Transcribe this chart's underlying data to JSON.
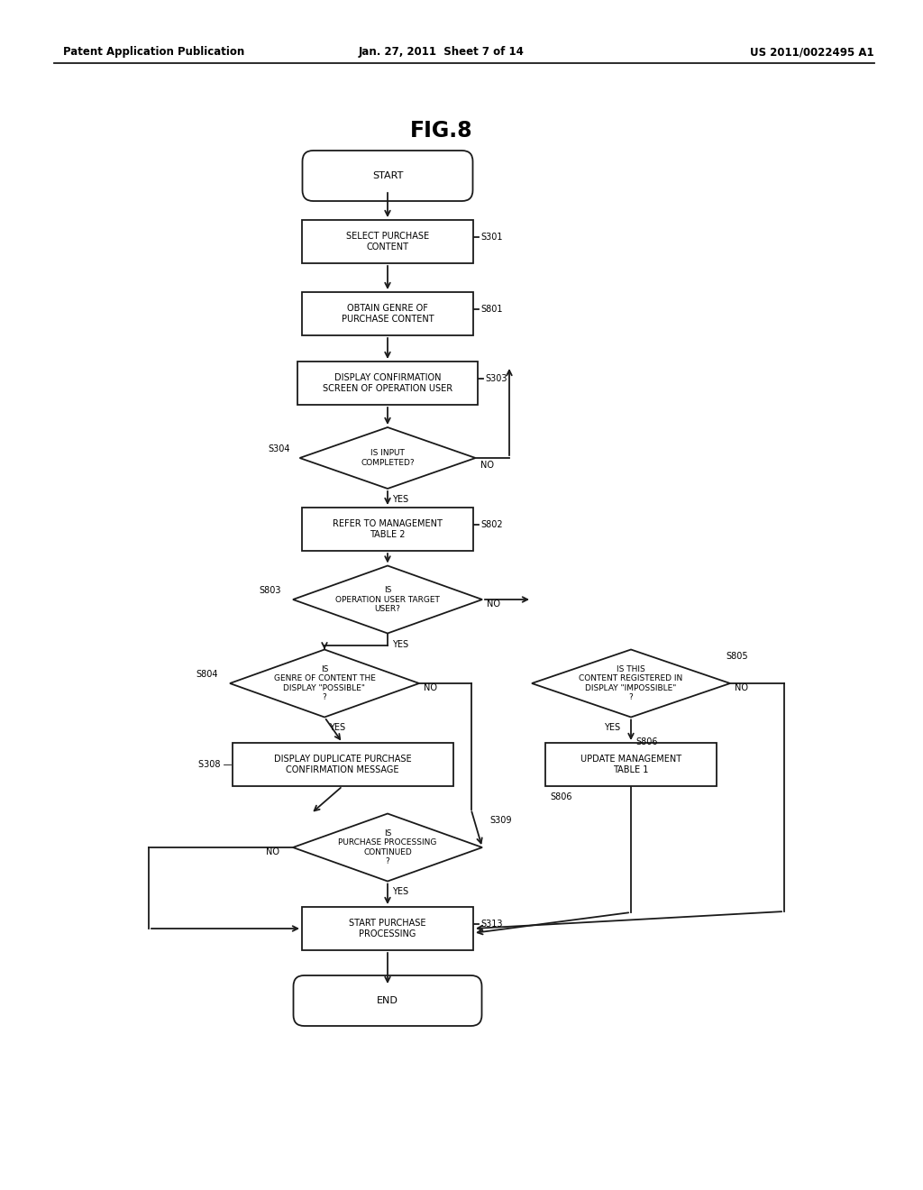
{
  "title": "FIG.8",
  "header_left": "Patent Application Publication",
  "header_center": "Jan. 27, 2011  Sheet 7 of 14",
  "header_right": "US 2011/0022495 A1",
  "bg_color": "#ffffff",
  "line_color": "#1a1a1a",
  "text_color": "#000000",
  "font_size_header": 8.5,
  "font_size_title": 17,
  "font_size_node": 7.0,
  "font_size_label": 7.0
}
